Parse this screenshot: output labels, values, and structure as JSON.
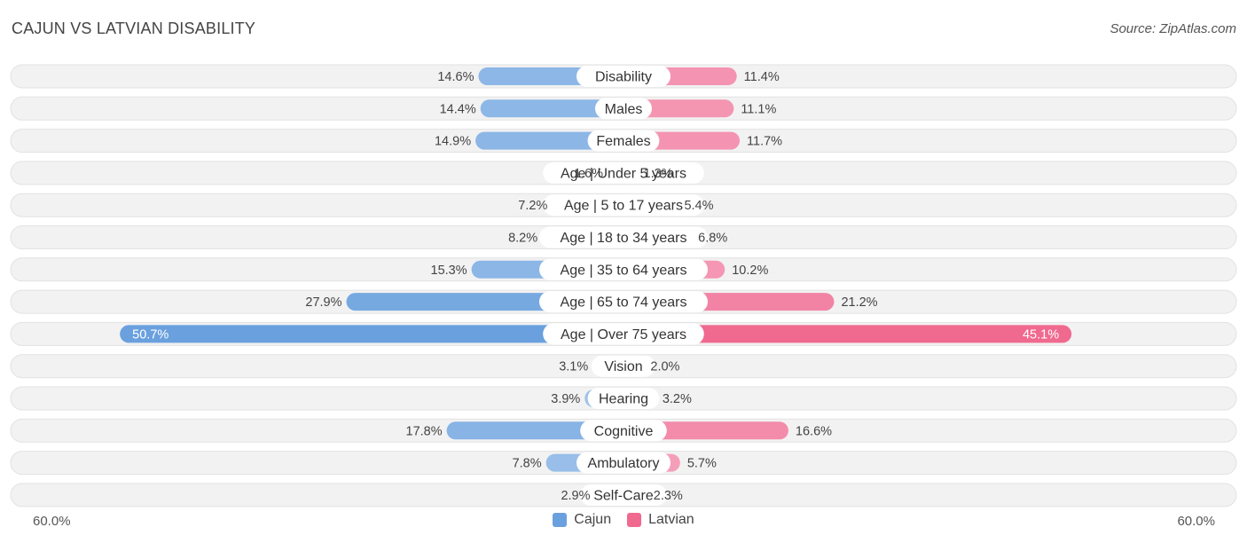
{
  "title": "CAJUN VS LATVIAN DISABILITY",
  "source": "Source: ZipAtlas.com",
  "colors": {
    "cajun": "#6aa0de",
    "cajun_light": "#a4c6ec",
    "latvian": "#f0698f",
    "latvian_light": "#f6a8c2",
    "row_bg": "#f2f2f2"
  },
  "chart_data": {
    "type": "bar",
    "orientation": "horizontal-diverging",
    "categories": [
      "Disability",
      "Males",
      "Females",
      "Age | Under 5 years",
      "Age | 5 to 17 years",
      "Age | 18 to 34 years",
      "Age | 35 to 64 years",
      "Age | 65 to 74 years",
      "Age | Over 75 years",
      "Vision",
      "Hearing",
      "Cognitive",
      "Ambulatory",
      "Self-Care"
    ],
    "series": [
      {
        "name": "Cajun",
        "values": [
          14.6,
          14.4,
          14.9,
          1.6,
          7.2,
          8.2,
          15.3,
          27.9,
          50.7,
          3.1,
          3.9,
          17.8,
          7.8,
          2.9
        ],
        "labels": [
          "14.6%",
          "14.4%",
          "14.9%",
          "1.6%",
          "7.2%",
          "8.2%",
          "15.3%",
          "27.9%",
          "50.7%",
          "3.1%",
          "3.9%",
          "17.8%",
          "7.8%",
          "2.9%"
        ]
      },
      {
        "name": "Latvian",
        "values": [
          11.4,
          11.1,
          11.7,
          1.3,
          5.4,
          6.8,
          10.2,
          21.2,
          45.1,
          2.0,
          3.2,
          16.6,
          5.7,
          2.3
        ],
        "labels": [
          "11.4%",
          "11.1%",
          "11.7%",
          "1.3%",
          "5.4%",
          "6.8%",
          "10.2%",
          "21.2%",
          "45.1%",
          "2.0%",
          "3.2%",
          "16.6%",
          "5.7%",
          "2.3%"
        ]
      }
    ],
    "xlim": [
      0,
      60
    ],
    "axis_left_label": "60.0%",
    "axis_right_label": "60.0%",
    "legend_placement": "bottom-center"
  }
}
